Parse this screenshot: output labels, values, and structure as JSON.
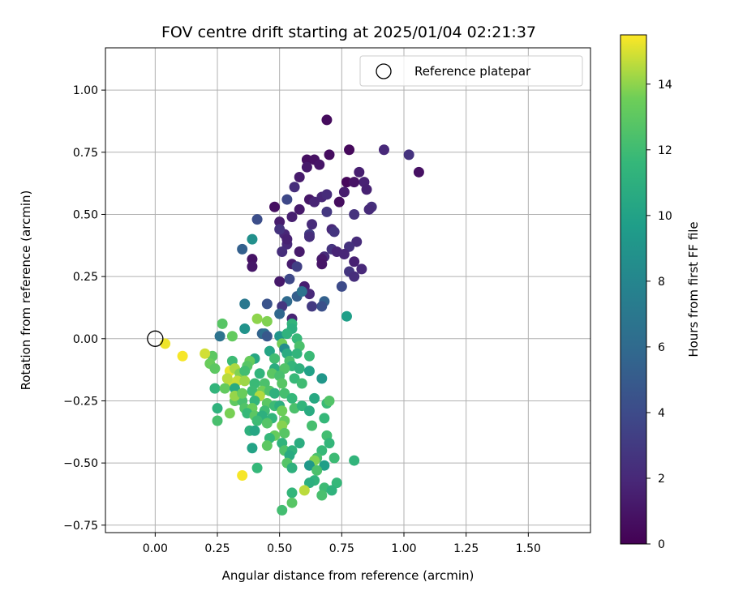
{
  "chart_data": {
    "type": "scatter",
    "title": "FOV centre drift starting at 2025/01/04 02:21:37",
    "xlabel": "Angular distance from reference (arcmin)",
    "ylabel": "Rotation from reference (arcmin)",
    "xlim": [
      -0.2,
      1.75
    ],
    "ylim": [
      -0.78,
      1.17
    ],
    "xticks": [
      "0.00",
      "0.25",
      "0.50",
      "0.75",
      "1.00",
      "1.25",
      "1.50"
    ],
    "yticks": [
      "-0.75",
      "-0.50",
      "-0.25",
      "0.00",
      "0.25",
      "0.50",
      "0.75",
      "1.00"
    ],
    "grid": true,
    "legend": {
      "placement": "top-right",
      "entries": [
        "Reference platepar"
      ]
    },
    "reference_point": {
      "x": 0.0,
      "y": 0.0,
      "label": "Reference platepar"
    },
    "colorbar": {
      "label": "Hours from first FF file",
      "colormap": "viridis",
      "range": [
        0,
        15.5
      ],
      "ticks": [
        "0",
        "2",
        "4",
        "6",
        "8",
        "10",
        "12",
        "14"
      ]
    },
    "points": [
      {
        "x": 0.69,
        "y": 0.88,
        "h": 0.5
      },
      {
        "x": 0.78,
        "y": 0.76,
        "h": 0.4
      },
      {
        "x": 0.7,
        "y": 0.74,
        "h": 0.6
      },
      {
        "x": 0.61,
        "y": 0.72,
        "h": 0.7
      },
      {
        "x": 0.64,
        "y": 0.72,
        "h": 0.8
      },
      {
        "x": 0.66,
        "y": 0.7,
        "h": 1.0
      },
      {
        "x": 0.61,
        "y": 0.69,
        "h": 1.2
      },
      {
        "x": 0.82,
        "y": 0.67,
        "h": 1.5
      },
      {
        "x": 0.77,
        "y": 0.63,
        "h": 0.3
      },
      {
        "x": 0.84,
        "y": 0.63,
        "h": 1.7
      },
      {
        "x": 0.8,
        "y": 0.63,
        "h": 0.9
      },
      {
        "x": 0.58,
        "y": 0.65,
        "h": 1.3
      },
      {
        "x": 0.92,
        "y": 0.76,
        "h": 2.0
      },
      {
        "x": 1.02,
        "y": 0.74,
        "h": 2.6
      },
      {
        "x": 1.06,
        "y": 0.67,
        "h": 0.8
      },
      {
        "x": 0.56,
        "y": 0.61,
        "h": 2.3
      },
      {
        "x": 0.85,
        "y": 0.6,
        "h": 1.6
      },
      {
        "x": 0.76,
        "y": 0.59,
        "h": 1.4
      },
      {
        "x": 0.67,
        "y": 0.57,
        "h": 1.9
      },
      {
        "x": 0.69,
        "y": 0.58,
        "h": 2.2
      },
      {
        "x": 0.62,
        "y": 0.56,
        "h": 1.1
      },
      {
        "x": 0.64,
        "y": 0.55,
        "h": 1.8
      },
      {
        "x": 0.74,
        "y": 0.55,
        "h": 0.6
      },
      {
        "x": 0.53,
        "y": 0.56,
        "h": 3.8
      },
      {
        "x": 0.48,
        "y": 0.53,
        "h": 0.7
      },
      {
        "x": 0.58,
        "y": 0.52,
        "h": 1.2
      },
      {
        "x": 0.87,
        "y": 0.53,
        "h": 2.4
      },
      {
        "x": 0.86,
        "y": 0.52,
        "h": 2.1
      },
      {
        "x": 0.69,
        "y": 0.51,
        "h": 2.8
      },
      {
        "x": 0.8,
        "y": 0.5,
        "h": 2.5
      },
      {
        "x": 0.55,
        "y": 0.49,
        "h": 1.5
      },
      {
        "x": 0.5,
        "y": 0.47,
        "h": 1.4
      },
      {
        "x": 0.63,
        "y": 0.46,
        "h": 2.1
      },
      {
        "x": 0.41,
        "y": 0.48,
        "h": 4.2
      },
      {
        "x": 0.52,
        "y": 0.42,
        "h": 1.9
      },
      {
        "x": 0.5,
        "y": 0.44,
        "h": 2.6
      },
      {
        "x": 0.71,
        "y": 0.44,
        "h": 2.0
      },
      {
        "x": 0.72,
        "y": 0.43,
        "h": 2.7
      },
      {
        "x": 0.62,
        "y": 0.42,
        "h": 3.1
      },
      {
        "x": 0.62,
        "y": 0.41,
        "h": 2.3
      },
      {
        "x": 0.53,
        "y": 0.38,
        "h": 2.0
      },
      {
        "x": 0.81,
        "y": 0.39,
        "h": 2.2
      },
      {
        "x": 0.53,
        "y": 0.4,
        "h": 1.6
      },
      {
        "x": 0.78,
        "y": 0.37,
        "h": 2.5
      },
      {
        "x": 0.71,
        "y": 0.36,
        "h": 2.6
      },
      {
        "x": 0.73,
        "y": 0.35,
        "h": 1.8
      },
      {
        "x": 0.39,
        "y": 0.4,
        "h": 8.7
      },
      {
        "x": 0.35,
        "y": 0.36,
        "h": 5.3
      },
      {
        "x": 0.51,
        "y": 0.35,
        "h": 2.3
      },
      {
        "x": 0.58,
        "y": 0.35,
        "h": 1.3
      },
      {
        "x": 0.76,
        "y": 0.34,
        "h": 1.9
      },
      {
        "x": 0.68,
        "y": 0.33,
        "h": 2.1
      },
      {
        "x": 0.67,
        "y": 0.32,
        "h": 1.2
      },
      {
        "x": 0.8,
        "y": 0.31,
        "h": 1.6
      },
      {
        "x": 0.39,
        "y": 0.32,
        "h": 0.9
      },
      {
        "x": 0.39,
        "y": 0.29,
        "h": 1.1
      },
      {
        "x": 0.55,
        "y": 0.3,
        "h": 1.4
      },
      {
        "x": 0.57,
        "y": 0.29,
        "h": 3.3
      },
      {
        "x": 0.67,
        "y": 0.3,
        "h": 1.0
      },
      {
        "x": 0.83,
        "y": 0.28,
        "h": 2.0
      },
      {
        "x": 0.78,
        "y": 0.27,
        "h": 2.7
      },
      {
        "x": 0.8,
        "y": 0.25,
        "h": 2.3
      },
      {
        "x": 0.54,
        "y": 0.24,
        "h": 3.8
      },
      {
        "x": 0.5,
        "y": 0.23,
        "h": 1.2
      },
      {
        "x": 0.6,
        "y": 0.21,
        "h": 1.5
      },
      {
        "x": 0.75,
        "y": 0.21,
        "h": 4.0
      },
      {
        "x": 0.62,
        "y": 0.18,
        "h": 2.0
      },
      {
        "x": 0.57,
        "y": 0.17,
        "h": 5.2
      },
      {
        "x": 0.59,
        "y": 0.19,
        "h": 6.6
      },
      {
        "x": 0.36,
        "y": 0.14,
        "h": 7.0
      },
      {
        "x": 0.53,
        "y": 0.15,
        "h": 6.0
      },
      {
        "x": 0.45,
        "y": 0.14,
        "h": 4.5
      },
      {
        "x": 0.51,
        "y": 0.13,
        "h": 2.8
      },
      {
        "x": 0.68,
        "y": 0.15,
        "h": 5.4
      },
      {
        "x": 0.63,
        "y": 0.13,
        "h": 3.0
      },
      {
        "x": 0.67,
        "y": 0.13,
        "h": 4.3
      },
      {
        "x": 0.77,
        "y": 0.09,
        "h": 9.8
      },
      {
        "x": 0.5,
        "y": 0.1,
        "h": 5.8
      },
      {
        "x": 0.55,
        "y": 0.08,
        "h": 1.8
      },
      {
        "x": 0.55,
        "y": 0.06,
        "h": 11.4
      },
      {
        "x": 0.55,
        "y": 0.04,
        "h": 10.9
      },
      {
        "x": 0.45,
        "y": 0.07,
        "h": 13.8
      },
      {
        "x": 0.36,
        "y": 0.04,
        "h": 8.9
      },
      {
        "x": 0.41,
        "y": 0.08,
        "h": 14.0
      },
      {
        "x": 0.43,
        "y": 0.02,
        "h": 5.5
      },
      {
        "x": 0.44,
        "y": 0.02,
        "h": 6.3
      },
      {
        "x": 0.45,
        "y": 0.01,
        "h": 4.8
      },
      {
        "x": 0.26,
        "y": 0.01,
        "h": 6.6
      },
      {
        "x": 0.27,
        "y": 0.06,
        "h": 12.8
      },
      {
        "x": 0.31,
        "y": 0.01,
        "h": 13.2
      },
      {
        "x": 0.5,
        "y": 0.01,
        "h": 9.1
      },
      {
        "x": 0.53,
        "y": 0.02,
        "h": 11.2
      },
      {
        "x": 0.57,
        "y": 0.0,
        "h": 11.7
      },
      {
        "x": 0.51,
        "y": -0.02,
        "h": 13.6
      },
      {
        "x": 0.58,
        "y": -0.03,
        "h": 12.4
      },
      {
        "x": 0.52,
        "y": -0.04,
        "h": 8.5
      },
      {
        "x": 0.46,
        "y": -0.05,
        "h": 10.2
      },
      {
        "x": 0.53,
        "y": -0.06,
        "h": 10.7
      },
      {
        "x": 0.57,
        "y": -0.06,
        "h": 11.4
      },
      {
        "x": 0.62,
        "y": -0.07,
        "h": 11.8
      },
      {
        "x": 0.23,
        "y": -0.07,
        "h": 13.0
      },
      {
        "x": 0.4,
        "y": -0.08,
        "h": 10.4
      },
      {
        "x": 0.48,
        "y": -0.08,
        "h": 12.1
      },
      {
        "x": 0.54,
        "y": -0.09,
        "h": 12.3
      },
      {
        "x": 0.55,
        "y": -0.11,
        "h": 11.5
      },
      {
        "x": 0.31,
        "y": -0.09,
        "h": 11.9
      },
      {
        "x": 0.38,
        "y": -0.09,
        "h": 13.3
      },
      {
        "x": 0.37,
        "y": -0.11,
        "h": 12.8
      },
      {
        "x": 0.22,
        "y": -0.1,
        "h": 13.4
      },
      {
        "x": 0.24,
        "y": -0.12,
        "h": 13.0
      },
      {
        "x": 0.48,
        "y": -0.12,
        "h": 10.8
      },
      {
        "x": 0.52,
        "y": -0.12,
        "h": 12.6
      },
      {
        "x": 0.58,
        "y": -0.12,
        "h": 11.1
      },
      {
        "x": 0.62,
        "y": -0.13,
        "h": 9.9
      },
      {
        "x": 0.3,
        "y": -0.13,
        "h": 15.2
      },
      {
        "x": 0.32,
        "y": -0.12,
        "h": 14.4
      },
      {
        "x": 0.34,
        "y": -0.14,
        "h": 13.8
      },
      {
        "x": 0.36,
        "y": -0.13,
        "h": 12.1
      },
      {
        "x": 0.42,
        "y": -0.14,
        "h": 11.4
      },
      {
        "x": 0.47,
        "y": -0.14,
        "h": 12.9
      },
      {
        "x": 0.5,
        "y": -0.15,
        "h": 12.3
      },
      {
        "x": 0.56,
        "y": -0.16,
        "h": 11.7
      },
      {
        "x": 0.67,
        "y": -0.16,
        "h": 9.2
      },
      {
        "x": 0.33,
        "y": -0.17,
        "h": 14.7
      },
      {
        "x": 0.36,
        "y": -0.17,
        "h": 14.2
      },
      {
        "x": 0.31,
        "y": -0.18,
        "h": 14.8
      },
      {
        "x": 0.4,
        "y": -0.18,
        "h": 11.8
      },
      {
        "x": 0.44,
        "y": -0.18,
        "h": 12.4
      },
      {
        "x": 0.51,
        "y": -0.18,
        "h": 12.8
      },
      {
        "x": 0.59,
        "y": -0.18,
        "h": 12.0
      },
      {
        "x": 0.24,
        "y": -0.2,
        "h": 11.4
      },
      {
        "x": 0.28,
        "y": -0.2,
        "h": 13.2
      },
      {
        "x": 0.32,
        "y": -0.2,
        "h": 10.6
      },
      {
        "x": 0.39,
        "y": -0.21,
        "h": 11.9
      },
      {
        "x": 0.43,
        "y": -0.21,
        "h": 13.6
      },
      {
        "x": 0.46,
        "y": -0.21,
        "h": 12.5
      },
      {
        "x": 0.42,
        "y": -0.23,
        "h": 14.5
      },
      {
        "x": 0.48,
        "y": -0.22,
        "h": 11.1
      },
      {
        "x": 0.52,
        "y": -0.22,
        "h": 12.2
      },
      {
        "x": 0.55,
        "y": -0.24,
        "h": 11.6
      },
      {
        "x": 0.64,
        "y": -0.24,
        "h": 10.5
      },
      {
        "x": 0.69,
        "y": -0.26,
        "h": 11.8
      },
      {
        "x": 0.7,
        "y": -0.25,
        "h": 12.6
      },
      {
        "x": 0.32,
        "y": -0.25,
        "h": 13.1
      },
      {
        "x": 0.35,
        "y": -0.25,
        "h": 12.3
      },
      {
        "x": 0.4,
        "y": -0.25,
        "h": 11.5
      },
      {
        "x": 0.45,
        "y": -0.26,
        "h": 12.9
      },
      {
        "x": 0.48,
        "y": -0.27,
        "h": 11.9
      },
      {
        "x": 0.5,
        "y": -0.27,
        "h": 10.9
      },
      {
        "x": 0.56,
        "y": -0.28,
        "h": 12.4
      },
      {
        "x": 0.59,
        "y": -0.27,
        "h": 11.4
      },
      {
        "x": 0.36,
        "y": -0.28,
        "h": 12.6
      },
      {
        "x": 0.39,
        "y": -0.28,
        "h": 13.4
      },
      {
        "x": 0.44,
        "y": -0.29,
        "h": 12.0
      },
      {
        "x": 0.51,
        "y": -0.29,
        "h": 13.5
      },
      {
        "x": 0.62,
        "y": -0.29,
        "h": 10.7
      },
      {
        "x": 0.25,
        "y": -0.28,
        "h": 11.2
      },
      {
        "x": 0.3,
        "y": -0.3,
        "h": 13.7
      },
      {
        "x": 0.37,
        "y": -0.3,
        "h": 11.7
      },
      {
        "x": 0.4,
        "y": -0.31,
        "h": 12.9
      },
      {
        "x": 0.43,
        "y": -0.31,
        "h": 11.0
      },
      {
        "x": 0.47,
        "y": -0.32,
        "h": 11.4
      },
      {
        "x": 0.52,
        "y": -0.33,
        "h": 13.2
      },
      {
        "x": 0.68,
        "y": -0.32,
        "h": 11.6
      },
      {
        "x": 0.25,
        "y": -0.33,
        "h": 12.3
      },
      {
        "x": 0.41,
        "y": -0.33,
        "h": 11.9
      },
      {
        "x": 0.45,
        "y": -0.34,
        "h": 12.7
      },
      {
        "x": 0.51,
        "y": -0.35,
        "h": 13.9
      },
      {
        "x": 0.63,
        "y": -0.35,
        "h": 12.2
      },
      {
        "x": 0.38,
        "y": -0.37,
        "h": 11.1
      },
      {
        "x": 0.4,
        "y": -0.37,
        "h": 10.3
      },
      {
        "x": 0.52,
        "y": -0.38,
        "h": 12.8
      },
      {
        "x": 0.69,
        "y": -0.39,
        "h": 12.1
      },
      {
        "x": 0.48,
        "y": -0.39,
        "h": 13.3
      },
      {
        "x": 0.46,
        "y": -0.4,
        "h": 11.6
      },
      {
        "x": 0.51,
        "y": -0.42,
        "h": 11.3
      },
      {
        "x": 0.58,
        "y": -0.42,
        "h": 10.8
      },
      {
        "x": 0.7,
        "y": -0.42,
        "h": 11.5
      },
      {
        "x": 0.39,
        "y": -0.44,
        "h": 10.1
      },
      {
        "x": 0.45,
        "y": -0.43,
        "h": 13.0
      },
      {
        "x": 0.52,
        "y": -0.45,
        "h": 12.5
      },
      {
        "x": 0.55,
        "y": -0.45,
        "h": 11.2
      },
      {
        "x": 0.67,
        "y": -0.45,
        "h": 11.7
      },
      {
        "x": 0.54,
        "y": -0.47,
        "h": 10.6
      },
      {
        "x": 0.65,
        "y": -0.48,
        "h": 12.3
      },
      {
        "x": 0.72,
        "y": -0.48,
        "h": 11.9
      },
      {
        "x": 0.8,
        "y": -0.49,
        "h": 11.4
      },
      {
        "x": 0.64,
        "y": -0.49,
        "h": 13.8
      },
      {
        "x": 0.53,
        "y": -0.5,
        "h": 12.7
      },
      {
        "x": 0.41,
        "y": -0.52,
        "h": 11.6
      },
      {
        "x": 0.62,
        "y": -0.51,
        "h": 9.3
      },
      {
        "x": 0.68,
        "y": -0.51,
        "h": 9.8
      },
      {
        "x": 0.55,
        "y": -0.52,
        "h": 11.1
      },
      {
        "x": 0.65,
        "y": -0.53,
        "h": 12.4
      },
      {
        "x": 0.35,
        "y": -0.55,
        "h": 15.4
      },
      {
        "x": 0.64,
        "y": -0.57,
        "h": 11.3
      },
      {
        "x": 0.62,
        "y": -0.58,
        "h": 10.9
      },
      {
        "x": 0.73,
        "y": -0.58,
        "h": 11.6
      },
      {
        "x": 0.68,
        "y": -0.6,
        "h": 11.9
      },
      {
        "x": 0.71,
        "y": -0.61,
        "h": 11.2
      },
      {
        "x": 0.6,
        "y": -0.61,
        "h": 14.6
      },
      {
        "x": 0.55,
        "y": -0.62,
        "h": 11.5
      },
      {
        "x": 0.67,
        "y": -0.63,
        "h": 12.3
      },
      {
        "x": 0.55,
        "y": -0.66,
        "h": 12.8
      },
      {
        "x": 0.51,
        "y": -0.69,
        "h": 12.1
      },
      {
        "x": 0.04,
        "y": -0.02,
        "h": 15.3
      },
      {
        "x": 0.11,
        "y": -0.07,
        "h": 15.4
      },
      {
        "x": 0.2,
        "y": -0.06,
        "h": 14.9
      },
      {
        "x": 0.29,
        "y": -0.16,
        "h": 14.6
      },
      {
        "x": 0.32,
        "y": -0.23,
        "h": 14.1
      },
      {
        "x": 0.35,
        "y": -0.22,
        "h": 13.4
      }
    ]
  }
}
